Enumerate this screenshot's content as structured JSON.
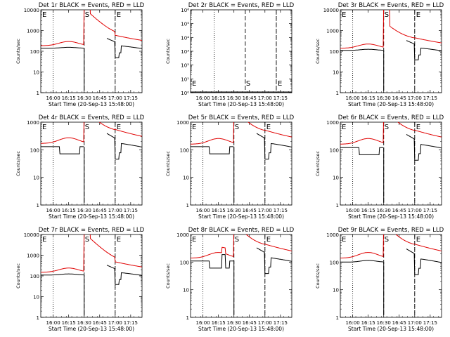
{
  "figure": {
    "xlabel": "Start Time (20-Sep-13 15:48:00)",
    "ylabel": "Counts/sec"
  },
  "chart_data": [
    {
      "type": "line",
      "title": "Det 1r BLACK = Events, RED = LLD",
      "ylim": [
        1,
        10000
      ],
      "yscale": "log",
      "yticks": [
        1,
        10,
        100,
        1000,
        10000
      ],
      "ytick_labels": [
        "1",
        "10",
        "100",
        "1000",
        "10000"
      ],
      "x_ticks": [
        0,
        15,
        30,
        45,
        60,
        75
      ],
      "x_tick_labels": [
        "16:00",
        "16:15",
        "16:30",
        "16:45",
        "17:00",
        "17:15"
      ],
      "xlim": [
        -12,
        86
      ],
      "markers": {
        "dotted": [
          0,
          60
        ],
        "dashed": [
          30,
          60
        ],
        "S": 30,
        "E": 60
      },
      "flat": false,
      "saturated": true,
      "dip": false,
      "spike": false,
      "base_black": 140,
      "base_red": 185
    },
    {
      "type": "line",
      "title": "Det 2r BLACK = Events, RED = LLD",
      "ylim": [
        1,
        1000000
      ],
      "yscale": "log",
      "yticks": [
        1,
        10,
        100,
        1000,
        10000,
        100000,
        1000000
      ],
      "ytick_labels": [
        "10⁰",
        "10¹",
        "10²",
        "10³",
        "10⁴",
        "10⁵",
        "10⁶"
      ],
      "x_ticks": [
        0,
        15,
        30,
        45,
        60,
        75
      ],
      "x_tick_labels": [
        "16:00",
        "16:15",
        "16:30",
        "16:45",
        "17:00",
        "17:15"
      ],
      "xlim": [
        -12,
        86
      ],
      "markers": {
        "dotted": [
          11,
          71
        ],
        "dashed": [
          41,
          71
        ],
        "S": 41,
        "E": 71
      },
      "flat": true,
      "saturated": false,
      "dip": false,
      "spike": false,
      "base_black": 1,
      "base_red": 1
    },
    {
      "type": "line",
      "title": "Det 3r BLACK = Events, RED = LLD",
      "ylim": [
        1,
        10000
      ],
      "yscale": "log",
      "yticks": [
        1,
        10,
        100,
        1000,
        10000
      ],
      "ytick_labels": [
        "1",
        "10",
        "100",
        "1000",
        "10000"
      ],
      "x_ticks": [
        0,
        15,
        30,
        45,
        60,
        75
      ],
      "x_tick_labels": [
        "16:00",
        "16:15",
        "16:30",
        "16:45",
        "17:00",
        "17:15"
      ],
      "xlim": [
        -12,
        86
      ],
      "markers": {
        "dotted": [
          0,
          60
        ],
        "dashed": [
          30,
          60
        ],
        "S": 30,
        "E": 60
      },
      "flat": false,
      "saturated": false,
      "dip": false,
      "spike": false,
      "base_black": 110,
      "base_red": 140
    },
    {
      "type": "line",
      "title": "Det 4r BLACK = Events, RED = LLD",
      "ylim": [
        1,
        1000
      ],
      "yscale": "log",
      "yticks": [
        1,
        10,
        100,
        1000
      ],
      "ytick_labels": [
        "1",
        "10",
        "100",
        "1000"
      ],
      "x_ticks": [
        0,
        15,
        30,
        45,
        60,
        75
      ],
      "x_tick_labels": [
        "16:00",
        "16:15",
        "16:30",
        "16:45",
        "17:00",
        "17:15"
      ],
      "xlim": [
        -12,
        86
      ],
      "markers": {
        "dotted": [
          0,
          60
        ],
        "dashed": [
          30,
          60
        ],
        "S": 30,
        "E": 60
      },
      "flat": false,
      "saturated": false,
      "dip": true,
      "spike": false,
      "base_black": 130,
      "base_red": 170
    },
    {
      "type": "line",
      "title": "Det 5r BLACK = Events, RED = LLD",
      "ylim": [
        1,
        1000
      ],
      "yscale": "log",
      "yticks": [
        1,
        10,
        100,
        1000
      ],
      "ytick_labels": [
        "1",
        "10",
        "100",
        "1000"
      ],
      "x_ticks": [
        0,
        15,
        30,
        45,
        60,
        75
      ],
      "x_tick_labels": [
        "16:00",
        "16:15",
        "16:30",
        "16:45",
        "17:00",
        "17:15"
      ],
      "xlim": [
        -12,
        86
      ],
      "markers": {
        "dotted": [
          0,
          60
        ],
        "dashed": [
          30,
          60
        ],
        "S": 30,
        "E": 60
      },
      "flat": false,
      "saturated": false,
      "dip": true,
      "spike": false,
      "base_black": 130,
      "base_red": 160
    },
    {
      "type": "line",
      "title": "Det 6r BLACK = Events, RED = LLD",
      "ylim": [
        1,
        1000
      ],
      "yscale": "log",
      "yticks": [
        1,
        10,
        100,
        1000
      ],
      "ytick_labels": [
        "1",
        "10",
        "100",
        "1000"
      ],
      "x_ticks": [
        0,
        15,
        30,
        45,
        60,
        75
      ],
      "x_tick_labels": [
        "16:00",
        "16:15",
        "16:30",
        "16:45",
        "17:00",
        "17:15"
      ],
      "xlim": [
        -12,
        86
      ],
      "markers": {
        "dotted": [
          0,
          60
        ],
        "dashed": [
          30,
          60
        ],
        "S": 30,
        "E": 60
      },
      "flat": false,
      "saturated": false,
      "dip": true,
      "spike": false,
      "base_black": 120,
      "base_red": 160
    },
    {
      "type": "line",
      "title": "Det 7r BLACK = Events, RED = LLD",
      "ylim": [
        1,
        10000
      ],
      "yscale": "log",
      "yticks": [
        1,
        10,
        100,
        1000,
        10000
      ],
      "ytick_labels": [
        "1",
        "10",
        "100",
        "1000",
        "10000"
      ],
      "x_ticks": [
        0,
        15,
        30,
        45,
        60,
        75
      ],
      "x_tick_labels": [
        "16:00",
        "16:15",
        "16:30",
        "16:45",
        "17:00",
        "17:15"
      ],
      "xlim": [
        -12,
        86
      ],
      "markers": {
        "dotted": [
          0,
          60
        ],
        "dashed": [
          30,
          60
        ],
        "S": 30,
        "E": 60
      },
      "flat": false,
      "saturated": true,
      "dip": false,
      "spike": false,
      "base_black": 110,
      "base_red": 150
    },
    {
      "type": "line",
      "title": "Det 8r BLACK = Events, RED = LLD",
      "ylim": [
        1,
        1000
      ],
      "yscale": "log",
      "yticks": [
        1,
        10,
        100,
        1000
      ],
      "ytick_labels": [
        "1",
        "10",
        "100",
        "1000"
      ],
      "x_ticks": [
        0,
        15,
        30,
        45,
        60,
        75
      ],
      "x_tick_labels": [
        "16:00",
        "16:15",
        "16:30",
        "16:45",
        "17:00",
        "17:15"
      ],
      "xlim": [
        -12,
        86
      ],
      "markers": {
        "dotted": [
          0,
          60
        ],
        "dashed": [
          30,
          60
        ],
        "S": 30,
        "E": 60
      },
      "flat": false,
      "saturated": false,
      "dip": true,
      "spike": true,
      "base_black": 110,
      "base_red": 140
    },
    {
      "type": "line",
      "title": "Det 9r BLACK = Events, RED = LLD",
      "ylim": [
        1,
        1000
      ],
      "yscale": "log",
      "yticks": [
        1,
        10,
        100,
        1000
      ],
      "ytick_labels": [
        "1",
        "10",
        "100",
        "1000"
      ],
      "x_ticks": [
        0,
        15,
        30,
        45,
        60,
        75
      ],
      "x_tick_labels": [
        "16:00",
        "16:15",
        "16:30",
        "16:45",
        "17:00",
        "17:15"
      ],
      "xlim": [
        -12,
        86
      ],
      "markers": {
        "dotted": [
          0,
          60
        ],
        "dashed": [
          30,
          60
        ],
        "S": 30,
        "E": 60
      },
      "flat": false,
      "saturated": false,
      "dip": false,
      "spike": false,
      "base_black": 100,
      "base_red": 140
    }
  ]
}
